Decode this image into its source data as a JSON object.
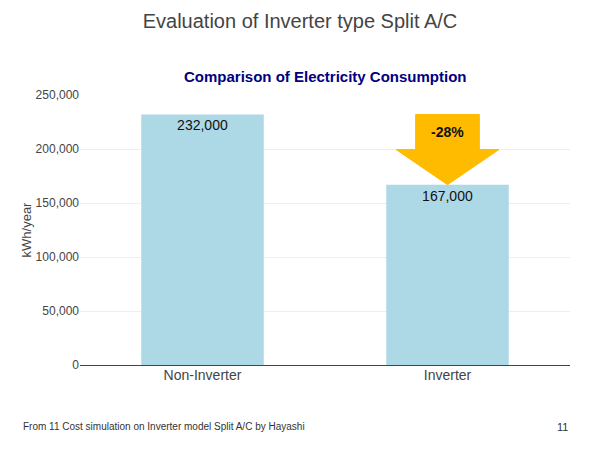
{
  "chart_data": {
    "type": "bar",
    "title": "Evaluation of Inverter type Split A/C",
    "subtitle": "Comparison of Electricity Consumption",
    "categories": [
      "Non-Inverter",
      "Inverter"
    ],
    "values": [
      232000,
      167000
    ],
    "value_labels": [
      "232,000",
      "167,000"
    ],
    "data_labels": true,
    "color": "#add8e6",
    "ylabel": "kWh/year",
    "ylim": [
      0,
      250000
    ],
    "yticks": [
      0,
      {
        "value": 50000,
        "label": "50,000"
      },
      {
        "value": 100000,
        "label": "100,000"
      },
      {
        "value": 150000,
        "label": "150,000"
      },
      {
        "value": 200000,
        "label": "200,000"
      },
      {
        "value": 250000,
        "label": "250,000"
      }
    ],
    "grid": true,
    "annotations": [
      {
        "text": "-28%",
        "color": "#FFBB00"
      }
    ],
    "footnote": "From 11 Cost simulation on Inverter model Split A/C by Hayashi",
    "page_number": "11"
  }
}
